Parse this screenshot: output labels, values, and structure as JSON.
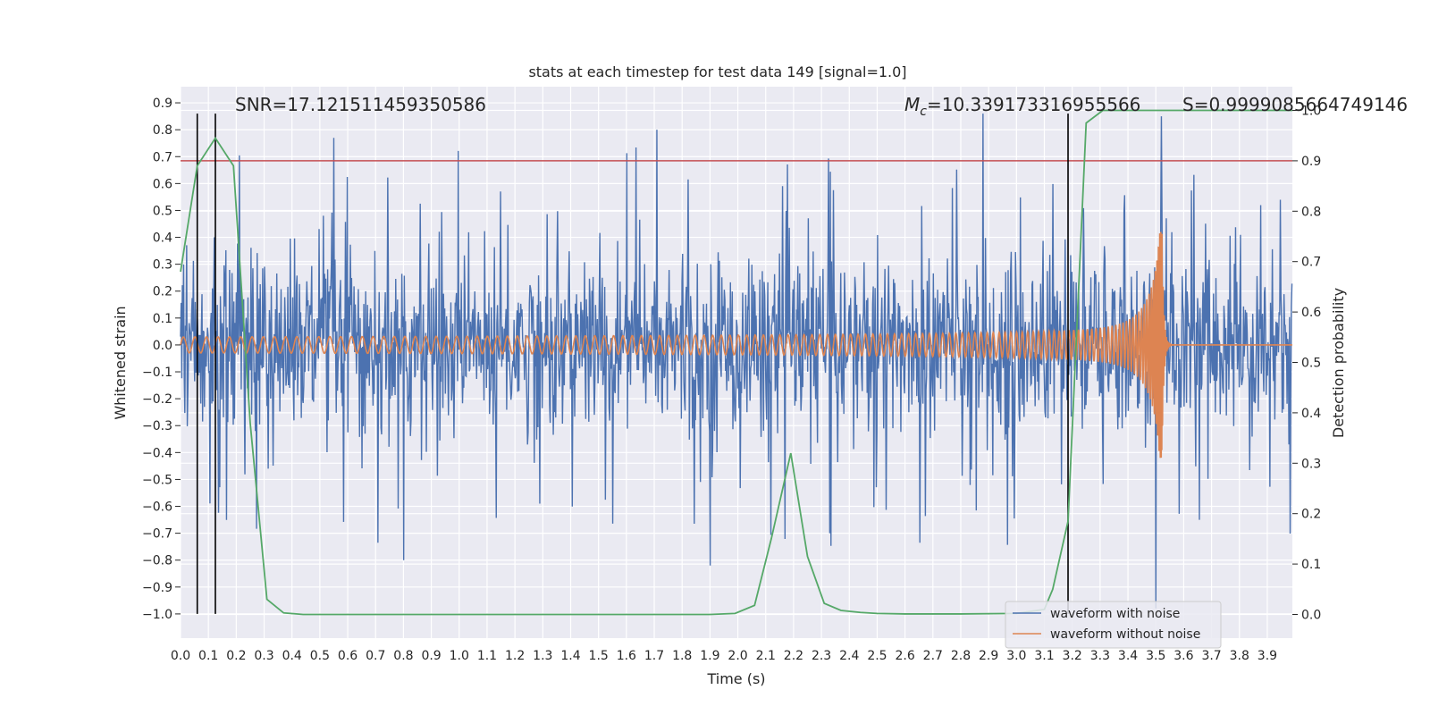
{
  "chart_data": {
    "type": "line",
    "title": "stats at each timestep for test data 149 [signal=1.0]",
    "xlabel": "Time (s)",
    "ylabel": "Whitened strain",
    "y2label": "Detection probability",
    "xlim": [
      0.0,
      3.99
    ],
    "ylim": [
      -1.09,
      0.96
    ],
    "y2lim": [
      -0.047,
      1.047
    ],
    "x_ticks": [
      "0.0",
      "0.1",
      "0.2",
      "0.3",
      "0.4",
      "0.5",
      "0.6",
      "0.7",
      "0.8",
      "0.9",
      "1.0",
      "1.1",
      "1.2",
      "1.3",
      "1.4",
      "1.5",
      "1.6",
      "1.7",
      "1.8",
      "1.9",
      "2.0",
      "2.1",
      "2.2",
      "2.3",
      "2.4",
      "2.5",
      "2.6",
      "2.7",
      "2.8",
      "2.9",
      "3.0",
      "3.1",
      "3.2",
      "3.3",
      "3.4",
      "3.5",
      "3.6",
      "3.7",
      "3.8",
      "3.9"
    ],
    "y_ticks": [
      "0.9",
      "0.8",
      "0.7",
      "0.6",
      "0.5",
      "0.4",
      "0.3",
      "0.2",
      "0.1",
      "0.0",
      "−0.1",
      "−0.2",
      "−0.3",
      "−0.4",
      "−0.5",
      "−0.6",
      "−0.7",
      "−0.8",
      "−0.9",
      "−1.0"
    ],
    "y2_ticks": [
      "1.0",
      "0.9",
      "0.8",
      "0.7",
      "0.6",
      "0.5",
      "0.4",
      "0.3",
      "0.2",
      "0.1",
      "0.0"
    ],
    "grid": true,
    "legend_position": "lower-right",
    "annotations": {
      "snr": "SNR=17.121511459350586",
      "mc_symbol": "M",
      "mc_sub": "c",
      "mc_value": "=10.339173316955566",
      "s": "S=0.9999085664749146"
    },
    "threshold": {
      "value": 0.9,
      "axis": "y2",
      "color": "#c44e52"
    },
    "vertical_lines": [
      0.06,
      0.125,
      3.185
    ],
    "vertical_line_top": 0.86,
    "detection_probability": {
      "name": "detection probability",
      "color": "#55a868",
      "x": [
        0.0,
        0.06,
        0.125,
        0.19,
        0.25,
        0.31,
        0.37,
        0.44,
        0.5,
        0.6,
        0.8,
        1.0,
        1.2,
        1.4,
        1.6,
        1.8,
        1.9,
        1.99,
        2.06,
        2.12,
        2.19,
        2.25,
        2.31,
        2.37,
        2.44,
        2.5,
        2.6,
        2.8,
        3.0,
        3.1,
        3.13,
        3.185,
        3.25,
        3.31,
        3.4,
        3.5,
        3.6,
        3.8,
        3.99
      ],
      "y": [
        0.68,
        0.89,
        0.945,
        0.89,
        0.38,
        0.03,
        0.003,
        0.0,
        0.0,
        0.0,
        0.0,
        0.0,
        0.0,
        0.0,
        0.0,
        0.0,
        0.0,
        0.002,
        0.018,
        0.15,
        0.32,
        0.115,
        0.022,
        0.008,
        0.004,
        0.002,
        0.001,
        0.001,
        0.002,
        0.01,
        0.05,
        0.185,
        0.975,
        1.0,
        1.0,
        1.0,
        1.0,
        1.0,
        1.0
      ]
    },
    "series": [
      {
        "name": "waveform with noise",
        "color": "#4c72b0",
        "description": "whitened noisy strain, roughly ±0.35 with peaks near ±0.8, sampled densely over 0–3.99 s",
        "peaks": [
          [
            0.12,
            0.4
          ],
          [
            0.55,
            0.77
          ],
          [
            1.71,
            0.8
          ],
          [
            2.88,
            0.86
          ],
          [
            3.52,
            0.85
          ],
          [
            3.5,
            -0.98
          ],
          [
            0.8,
            -0.8
          ],
          [
            1.9,
            -0.82
          ]
        ]
      },
      {
        "name": "waveform without noise",
        "color": "#dd8452",
        "description": "inspiral chirp with increasing frequency and amplitude, merger near 3.52 s then ringdown",
        "amplitude_start": 0.03,
        "freq_start_hz": 24,
        "merger_time": 3.522,
        "peak_amplitude": 0.42,
        "min_amplitude": -0.45
      }
    ]
  }
}
